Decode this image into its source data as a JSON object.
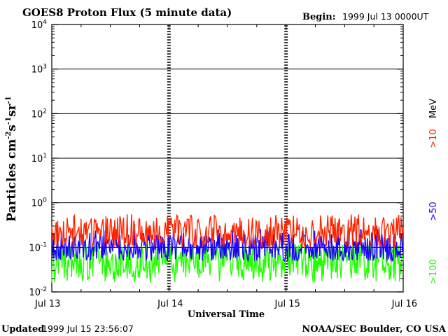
{
  "chart_data": {
    "type": "line",
    "title": "GOES8 Proton Flux (5 minute data)",
    "begin_label": "Begin:",
    "begin_value": "1999 Jul 13 0000UT",
    "xlabel": "Universal Time",
    "ylabel_main": "Particles cm",
    "ylabel_exp1": "-2",
    "ylabel_mid1": "s",
    "ylabel_exp2": "-1",
    "ylabel_mid2": "sr",
    "ylabel_exp3": "-1",
    "y_scale": "log",
    "ylim": [
      0.01,
      10000
    ],
    "y_ticks": [
      {
        "base": "10",
        "exp": "-2",
        "value": 0.01
      },
      {
        "base": "10",
        "exp": "-1",
        "value": 0.1
      },
      {
        "base": "10",
        "exp": "0",
        "value": 1
      },
      {
        "base": "10",
        "exp": "1",
        "value": 10
      },
      {
        "base": "10",
        "exp": "2",
        "value": 100
      },
      {
        "base": "10",
        "exp": "3",
        "value": 1000
      },
      {
        "base": "10",
        "exp": "4",
        "value": 10000
      }
    ],
    "xlim": [
      "1999-07-13T00:00",
      "1999-07-16T00:00"
    ],
    "x_ticks": [
      {
        "label": "Jul 13",
        "date": "1999-07-13"
      },
      {
        "label": "Jul 14",
        "date": "1999-07-14"
      },
      {
        "label": "Jul 15",
        "date": "1999-07-15"
      },
      {
        "label": "Jul 16",
        "date": "1999-07-16"
      }
    ],
    "grid": "horizontal at each decade",
    "legend_placement": "right, vertical text",
    "energy_unit": "MeV",
    "series": [
      {
        "name": ">10",
        "color": "#ff2400",
        "samples_per_day": 160,
        "typical_flux": 0.22,
        "min_flux": 0.1,
        "max_flux": 0.55
      },
      {
        "name": ">50",
        "color": "#1a00ff",
        "samples_per_day": 160,
        "typical_flux": 0.1,
        "min_flux": 0.05,
        "max_flux": 0.26
      },
      {
        "name": ">100",
        "color": "#22ff00",
        "samples_per_day": 160,
        "typical_flux": 0.05,
        "min_flux": 0.016,
        "max_flux": 0.12
      }
    ]
  },
  "footer": {
    "updated_label": "Updated",
    "updated_value": "1999 Jul 15 23:56:07",
    "credit": "NOAA/SEC Boulder, CO USA"
  },
  "colors": {
    "background": "#ffffff",
    "axis": "#000000",
    "grid": "#000000"
  }
}
